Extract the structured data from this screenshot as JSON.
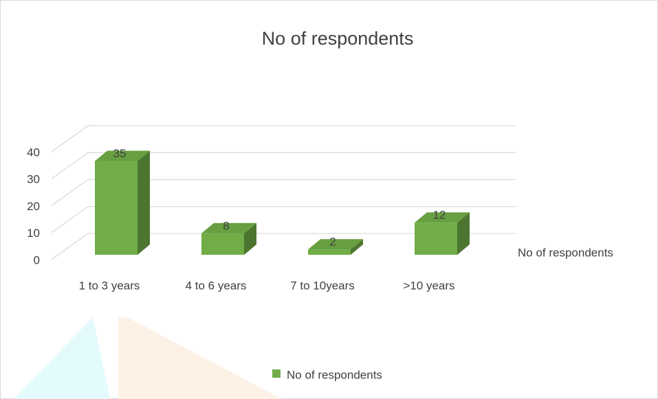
{
  "chart_data": {
    "type": "bar3d",
    "title": "No of respondents",
    "categories": [
      "1 to 3 years",
      "4 to 6 years",
      "7 to 10years",
      ">10 years"
    ],
    "series": [
      {
        "name": "No of respondents",
        "color": "#70ad47",
        "values": [
          35,
          8,
          2,
          12
        ]
      }
    ],
    "ylim": [
      0,
      40
    ],
    "yticks": [
      0,
      10,
      20,
      30,
      40
    ],
    "grid": true,
    "legend": "bottom"
  }
}
